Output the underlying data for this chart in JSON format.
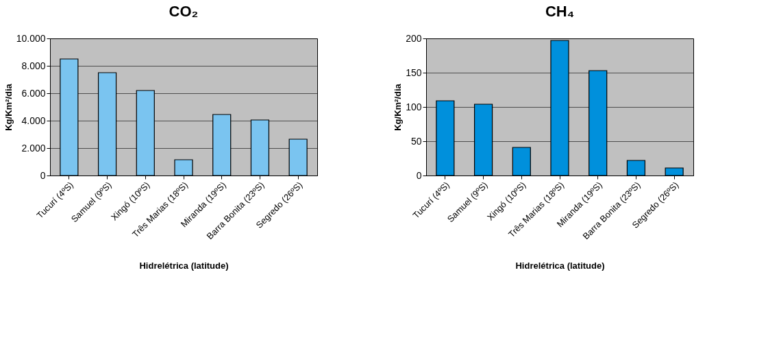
{
  "chart_data": [
    {
      "type": "bar",
      "title": "CO₂",
      "xlabel": "Hidrelétrica (latitude)",
      "ylabel": "Kg/Km²/dia",
      "categories": [
        "Tucurí (4ºS)",
        "Samuel (9ºS)",
        "Xingó (10ºS)",
        "Três Marias (18ºS)",
        "Miranda (19ºS)",
        "Barra Bonita (23ºS)",
        "Segredo (26ºS)"
      ],
      "values": [
        8500,
        7500,
        6200,
        1150,
        4450,
        4050,
        2650
      ],
      "color": "#7ac4f0",
      "ylim": [
        0,
        10000
      ],
      "yticks": [
        0,
        {
          "value": 2000,
          "label": "2.000"
        },
        {
          "value": 4000,
          "label": "4.000"
        },
        {
          "value": 6000,
          "label": "6.000"
        },
        {
          "value": 8000,
          "label": "8.000"
        },
        {
          "value": 10000,
          "label": "10.000"
        }
      ],
      "grid": "y"
    },
    {
      "type": "bar",
      "title": "CH₄",
      "xlabel": "Hidrelétrica (latitude)",
      "ylabel": "Kg/Km²/dia",
      "categories": [
        "Tucurí (4ºS)",
        "Samuel (9ºS)",
        "Xingó (10ºS)",
        "Três Marias (18ºS)",
        "Miranda (19ºS)",
        "Barra Bonita (23ºS)",
        "Segredo (26ºS)"
      ],
      "values": [
        109,
        104,
        41,
        197,
        153,
        22,
        11
      ],
      "color": "#0090dc",
      "ylim": [
        0,
        200
      ],
      "yticks": [
        0,
        50,
        100,
        150,
        200
      ],
      "grid": "y"
    }
  ]
}
